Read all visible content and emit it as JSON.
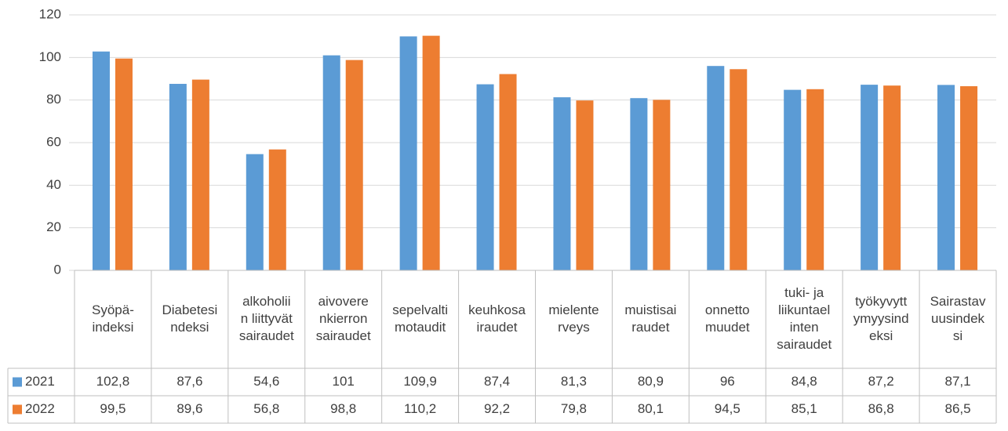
{
  "chart_data": {
    "type": "bar",
    "categories": [
      [
        "Syöpä-",
        "indeksi"
      ],
      [
        "Diabetesi",
        "ndeksi"
      ],
      [
        "alkoholii",
        "n liittyvät",
        "sairaudet"
      ],
      [
        "aivovere",
        "nkierron",
        "sairaudet"
      ],
      [
        "sepelvalti",
        "motaudit"
      ],
      [
        "keuhkosa",
        "iraudet"
      ],
      [
        "mielente",
        "rveys"
      ],
      [
        "muistisai",
        "raudet"
      ],
      [
        "onnetto",
        "muudet"
      ],
      [
        "tuki- ja",
        "liikuntael",
        "inten",
        "sairaudet"
      ],
      [
        "työkyvytt",
        "ymyysind",
        "eksi"
      ],
      [
        "Sairastav",
        "uusindek",
        "si"
      ]
    ],
    "series": [
      {
        "name": "2021",
        "color": "#5b9bd5",
        "values": [
          102.8,
          87.6,
          54.6,
          101,
          109.9,
          87.4,
          81.3,
          80.9,
          96,
          84.8,
          87.2,
          87.1
        ],
        "value_labels": [
          "102,8",
          "87,6",
          "54,6",
          "101",
          "109,9",
          "87,4",
          "81,3",
          "80,9",
          "96",
          "84,8",
          "87,2",
          "87,1"
        ]
      },
      {
        "name": "2022",
        "color": "#ed7d31",
        "values": [
          99.5,
          89.6,
          56.8,
          98.8,
          110.2,
          92.2,
          79.8,
          80.1,
          94.5,
          85.1,
          86.8,
          86.5
        ],
        "value_labels": [
          "99,5",
          "89,6",
          "56,8",
          "98,8",
          "110,2",
          "92,2",
          "79,8",
          "80,1",
          "94,5",
          "85,1",
          "86,8",
          "86,5"
        ]
      }
    ],
    "ylim": [
      0,
      120
    ],
    "yticks": [
      0,
      20,
      40,
      60,
      80,
      100,
      120
    ],
    "grid": true
  }
}
